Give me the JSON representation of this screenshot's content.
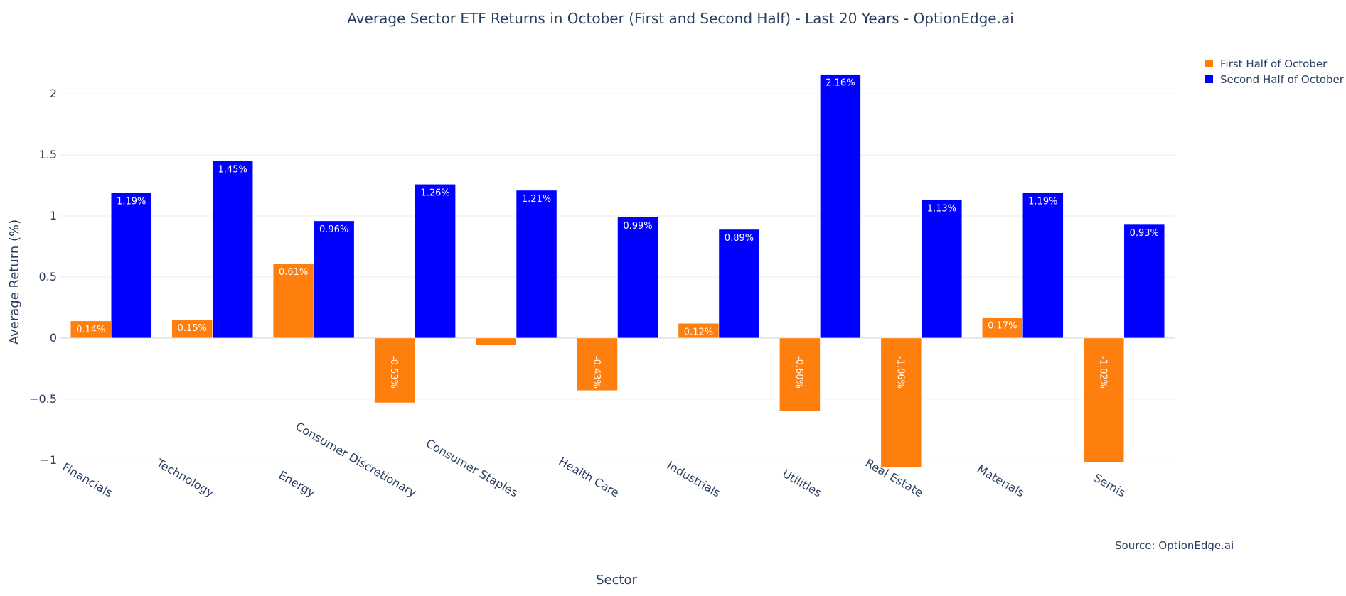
{
  "chart_data": {
    "type": "bar",
    "title": "Average Sector ETF Returns in October (First and Second Half) - Last 20 Years - OptionEdge.ai",
    "xlabel": "Sector",
    "ylabel": "Average Return (%)",
    "categories": [
      "Financials",
      "Technology",
      "Energy",
      "Consumer Discretionary",
      "Consumer Staples",
      "Health Care",
      "Industrials",
      "Utilities",
      "Real Estate",
      "Materials",
      "Semis"
    ],
    "series": [
      {
        "name": "First Half of October",
        "color": "#ff7f0e",
        "values": [
          0.14,
          0.15,
          0.61,
          -0.53,
          -0.06,
          -0.43,
          0.12,
          -0.6,
          -1.06,
          0.17,
          -1.02
        ],
        "labels": [
          "0.14%",
          "0.15%",
          "0.61%",
          "-0.53%",
          "",
          "-0.43%",
          "0.12%",
          "-0.60%",
          "-1.06%",
          "0.17%",
          "-1.02%"
        ]
      },
      {
        "name": "Second Half of October",
        "color": "#0000ff",
        "values": [
          1.19,
          1.45,
          0.96,
          1.26,
          1.21,
          0.99,
          0.89,
          2.16,
          1.13,
          1.19,
          0.93
        ],
        "labels": [
          "1.19%",
          "1.45%",
          "0.96%",
          "1.26%",
          "1.21%",
          "0.99%",
          "0.89%",
          "2.16%",
          "1.13%",
          "1.19%",
          "0.93%"
        ]
      }
    ],
    "ylim": [
      -1.17,
      2.35
    ],
    "yticks": [
      -1,
      -0.5,
      0,
      0.5,
      1,
      1.5,
      2
    ],
    "ytick_labels": [
      "−1",
      "−0.5",
      "0",
      "0.5",
      "1",
      "1.5",
      "2"
    ],
    "grid": true,
    "legend_position": "top-right",
    "annotation": "Source: OptionEdge.ai"
  }
}
